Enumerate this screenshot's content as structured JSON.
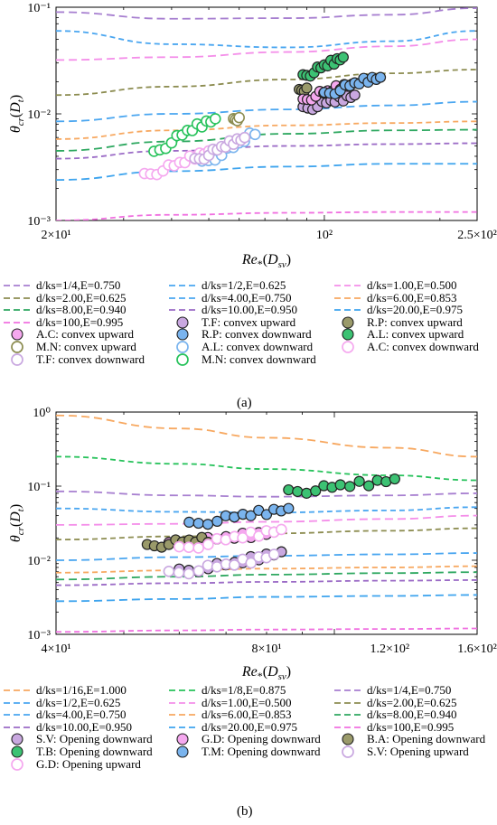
{
  "panel_a": {
    "label": "(a)",
    "y_axis_label": "θcr(Dt)",
    "x_axis_label": "Re*(Dsv)",
    "y_ticks": [
      "10⁻¹",
      "10⁻²",
      "10⁻³"
    ],
    "x_ticks": [
      "2×10¹",
      "10²",
      "2.5×10²"
    ],
    "legend_labels": {
      "c0": "d/ks=1/4,E=0.750",
      "c1": "d/ks=1/2,E=0.625",
      "c2": "d/ks=1.00,E=0.500",
      "c3": "d/ks=2.00,E=0.625",
      "c4": "d/ks=4.00,E=0.750",
      "c5": "d/ks=6.00,E=0.853",
      "c6": "d/ks=8.00,E=0.940",
      "c7": "d/ks=10.00,E=0.950",
      "c8": "d/ks=20.00,E=0.975",
      "c9": "d/ks=100,E=0.995",
      "s0": "T.F: convex upward",
      "s1": "R.P: convex upward",
      "s2": "A.C: convex upward",
      "s3": "R.P: convex downward",
      "s4": "A.L: convex upward",
      "s5": "M.N: convex upward",
      "s6": "A.L: convex downward",
      "s7": "A.C: convex downward",
      "s8": "T.F: convex downward",
      "s9": "M.N: convex downward"
    }
  },
  "panel_b": {
    "label": "(b)",
    "y_axis_label": "θcr(Dt)",
    "x_axis_label": "Re*(Dsv)",
    "y_ticks": [
      "10⁰",
      "10⁻¹",
      "10⁻²",
      "10⁻³"
    ],
    "x_ticks": [
      "4×10¹",
      "8×10¹",
      "1.2×10²",
      "1.6×10²"
    ],
    "legend_labels": {
      "c0": "d/ks=1/16,E=1.000",
      "c1": "d/ks=1/8,E=0.875",
      "c2": "d/ks=1/4,E=0.750",
      "c3": "d/ks=1/2,E=0.625",
      "c4": "d/ks=1.00,E=0.500",
      "c5": "d/ks=2.00,E=0.625",
      "c6": "d/ks=4.00,E=0.750",
      "c7": "d/ks=6.00,E=0.853",
      "c8": "d/ks=8.00,E=0.940",
      "c9": "d/ks=10.00,E=0.950",
      "c10": "d/ks=20.00,E=0.975",
      "c11": "d/ks=100,E=0.995",
      "s0": "S.V: Opening downward",
      "s1": "G.D: Opening downward",
      "s2": "B.A: Opening downward",
      "s3": "T.B: Opening downward",
      "s4": "T.M: Opening downward",
      "s5": "S.V: Opening upward",
      "s6": "G.D: Opening upward"
    }
  },
  "colors": {
    "purple": "#a77fd0",
    "olive": "#8c8c50",
    "green": "#27c25b",
    "sky": "#4aa6f0",
    "pink": "#f48ee9",
    "orange": "#f7a860",
    "violet": "#9b6bc6",
    "blue": "#3ea4ee",
    "magenta": "#f070e0",
    "greendk": "#2ea860",
    "oliveMarker": "#9a9a6a",
    "pinkMarker": "#f5a8ef",
    "blueMarker": "#7ab4ee",
    "greenMarker": "#3cc273",
    "lavender": "#c9a8e0"
  },
  "chart_data": [
    {
      "type": "scatter",
      "xlabel": "Re*(Dsv)",
      "ylabel": "θcr(Dt)",
      "xscale": "log",
      "yscale": "log",
      "xlim": [
        20,
        250
      ],
      "ylim": [
        0.001,
        0.1
      ],
      "grid": false,
      "legend_position": "below",
      "curves": [
        {
          "name": "d/ks=1/4,E=0.750",
          "color": "purple",
          "x": [
            20,
            40,
            80,
            150,
            250
          ],
          "y": [
            0.09,
            0.078,
            0.079,
            0.085,
            0.098
          ]
        },
        {
          "name": "d/ks=1/2,E=0.625",
          "color": "sky",
          "x": [
            20,
            40,
            80,
            150,
            250
          ],
          "y": [
            0.06,
            0.045,
            0.042,
            0.048,
            0.06
          ]
        },
        {
          "name": "d/ks=1.00,E=0.500",
          "color": "pink",
          "x": [
            20,
            40,
            80,
            150,
            250
          ],
          "y": [
            0.032,
            0.034,
            0.038,
            0.043,
            0.05
          ]
        },
        {
          "name": "d/ks=2.00,E=0.625",
          "color": "olive",
          "x": [
            20,
            40,
            80,
            150,
            250
          ],
          "y": [
            0.015,
            0.018,
            0.021,
            0.024,
            0.026
          ]
        },
        {
          "name": "d/ks=4.00,E=0.750",
          "color": "sky",
          "x": [
            20,
            40,
            80,
            150,
            250
          ],
          "y": [
            0.0085,
            0.01,
            0.011,
            0.012,
            0.013
          ]
        },
        {
          "name": "d/ks=6.00,E=0.853",
          "color": "orange",
          "x": [
            20,
            40,
            80,
            150,
            250
          ],
          "y": [
            0.0058,
            0.007,
            0.0078,
            0.0082,
            0.0085
          ]
        },
        {
          "name": "d/ks=8.00,E=0.940",
          "color": "greendk",
          "x": [
            20,
            40,
            80,
            150,
            250
          ],
          "y": [
            0.0045,
            0.0055,
            0.0065,
            0.007,
            0.0071
          ]
        },
        {
          "name": "d/ks=10.00,E=0.950",
          "color": "violet",
          "x": [
            20,
            40,
            80,
            150,
            250
          ],
          "y": [
            0.0038,
            0.0045,
            0.005,
            0.0052,
            0.0053
          ]
        },
        {
          "name": "d/ks=20.00,E=0.975",
          "color": "blue",
          "x": [
            20,
            40,
            80,
            150,
            250
          ],
          "y": [
            0.0024,
            0.0029,
            0.0032,
            0.0034,
            0.0034
          ]
        },
        {
          "name": "d/ks=100,E=0.995",
          "color": "magenta",
          "x": [
            20,
            40,
            80,
            150,
            250
          ],
          "y": [
            0.001,
            0.00113,
            0.00118,
            0.0012,
            0.0012
          ]
        }
      ],
      "series": [
        {
          "name": "T.F: convex upward",
          "marker": "filled",
          "color": "lavender",
          "x": [
            88,
            96,
            104,
            112,
            120
          ],
          "y": [
            0.011,
            0.012,
            0.013,
            0.014,
            0.015
          ]
        },
        {
          "name": "R.P: convex upward",
          "marker": "filled",
          "color": "oliveMarker",
          "x": [
            86,
            90
          ],
          "y": [
            0.016,
            0.018
          ]
        },
        {
          "name": "A.C: convex upward",
          "marker": "filled",
          "color": "pinkMarker",
          "x": [
            88,
            95,
            102,
            110,
            118
          ],
          "y": [
            0.013,
            0.015,
            0.016,
            0.018,
            0.019
          ]
        },
        {
          "name": "A.L: convex upward",
          "marker": "filled",
          "color": "blueMarker",
          "x": [
            100,
            110,
            120,
            130,
            140
          ],
          "y": [
            0.015,
            0.017,
            0.019,
            0.021,
            0.022
          ]
        },
        {
          "name": "M.N: convex upward",
          "marker": "filled",
          "color": "greenMarker",
          "x": [
            88,
            94,
            100,
            106,
            112
          ],
          "y": [
            0.022,
            0.025,
            0.028,
            0.031,
            0.034
          ]
        },
        {
          "name": "R.P: convex downward",
          "marker": "open",
          "color": "olive",
          "x": [
            58,
            60
          ],
          "y": [
            0.0085,
            0.0095
          ]
        },
        {
          "name": "A.L: convex downward",
          "marker": "open",
          "color": "blueMarker",
          "x": [
            48,
            54,
            60,
            66
          ],
          "y": [
            0.0034,
            0.0042,
            0.0052,
            0.0068
          ]
        },
        {
          "name": "A.C: convex downward",
          "marker": "open",
          "color": "pinkMarker",
          "x": [
            34,
            38,
            42,
            46,
            50
          ],
          "y": [
            0.0026,
            0.003,
            0.0034,
            0.004,
            0.0045
          ]
        },
        {
          "name": "T.F: convex downward",
          "marker": "open",
          "color": "lavender",
          "x": [
            46,
            50,
            54,
            58,
            62
          ],
          "y": [
            0.0036,
            0.0042,
            0.0048,
            0.0055,
            0.006
          ]
        },
        {
          "name": "M.N: convex downward",
          "marker": "open",
          "color": "green",
          "x": [
            36,
            40,
            44,
            48,
            52
          ],
          "y": [
            0.0042,
            0.0055,
            0.0068,
            0.008,
            0.009
          ]
        }
      ]
    },
    {
      "type": "scatter",
      "xlabel": "Re*(Dsv)",
      "ylabel": "θcr(Dt)",
      "xscale": "log",
      "yscale": "log",
      "xlim": [
        40,
        160
      ],
      "ylim": [
        0.001,
        1
      ],
      "grid": false,
      "legend_position": "below",
      "curves": [
        {
          "name": "d/ks=1/16,E=1.000",
          "color": "orange",
          "x": [
            40,
            60,
            80,
            120,
            160
          ],
          "y": [
            0.9,
            0.6,
            0.45,
            0.33,
            0.25
          ]
        },
        {
          "name": "d/ks=1/8,E=0.875",
          "color": "green",
          "x": [
            40,
            60,
            80,
            120,
            160
          ],
          "y": [
            0.25,
            0.2,
            0.17,
            0.14,
            0.12
          ]
        },
        {
          "name": "d/ks=1/4,E=0.750",
          "color": "purple",
          "x": [
            40,
            60,
            80,
            120,
            160
          ],
          "y": [
            0.085,
            0.075,
            0.072,
            0.075,
            0.08
          ]
        },
        {
          "name": "d/ks=1/2,E=0.625",
          "color": "sky",
          "x": [
            40,
            60,
            80,
            120,
            160
          ],
          "y": [
            0.05,
            0.045,
            0.044,
            0.047,
            0.052
          ]
        },
        {
          "name": "d/ks=1.00,E=0.500",
          "color": "pink",
          "x": [
            40,
            60,
            80,
            120,
            160
          ],
          "y": [
            0.03,
            0.031,
            0.033,
            0.036,
            0.04
          ]
        },
        {
          "name": "d/ks=2.00,E=0.625",
          "color": "olive",
          "x": [
            40,
            60,
            80,
            120,
            160
          ],
          "y": [
            0.019,
            0.021,
            0.023,
            0.025,
            0.027
          ]
        },
        {
          "name": "d/ks=4.00,E=0.750",
          "color": "sky",
          "x": [
            40,
            60,
            80,
            120,
            160
          ],
          "y": [
            0.01,
            0.011,
            0.0115,
            0.012,
            0.0125
          ]
        },
        {
          "name": "d/ks=6.00,E=0.853",
          "color": "orange",
          "x": [
            40,
            60,
            80,
            120,
            160
          ],
          "y": [
            0.0068,
            0.0073,
            0.0077,
            0.008,
            0.0083
          ]
        },
        {
          "name": "d/ks=8.00,E=0.940",
          "color": "greendk",
          "x": [
            40,
            60,
            80,
            120,
            160
          ],
          "y": [
            0.0055,
            0.006,
            0.0064,
            0.0067,
            0.0069
          ]
        },
        {
          "name": "d/ks=10.00,E=0.950",
          "color": "violet",
          "x": [
            40,
            60,
            80,
            120,
            160
          ],
          "y": [
            0.0046,
            0.0049,
            0.0051,
            0.0053,
            0.0054
          ]
        },
        {
          "name": "d/ks=20.00,E=0.975",
          "color": "blue",
          "x": [
            40,
            60,
            80,
            120,
            160
          ],
          "y": [
            0.0028,
            0.003,
            0.0032,
            0.0033,
            0.0034
          ]
        },
        {
          "name": "d/ks=100,E=0.995",
          "color": "magenta",
          "x": [
            40,
            60,
            80,
            120,
            160
          ],
          "y": [
            0.00108,
            0.00113,
            0.00116,
            0.00118,
            0.0012
          ]
        }
      ],
      "series": [
        {
          "name": "S.V: Opening downward",
          "marker": "filled",
          "color": "lavender",
          "x": [
            60,
            66,
            72,
            78,
            84
          ],
          "y": [
            0.007,
            0.008,
            0.009,
            0.011,
            0.013
          ]
        },
        {
          "name": "G.D: Opening downward",
          "marker": "filled",
          "color": "pinkMarker",
          "x": [
            58,
            64,
            70,
            76,
            82
          ],
          "y": [
            0.016,
            0.018,
            0.02,
            0.022,
            0.024
          ]
        },
        {
          "name": "B.A: Opening downward",
          "marker": "filled",
          "color": "oliveMarker",
          "x": [
            54,
            58,
            62,
            66
          ],
          "y": [
            0.015,
            0.017,
            0.018,
            0.019
          ]
        },
        {
          "name": "T.B: Opening downward",
          "marker": "filled",
          "color": "greenMarker",
          "x": [
            86,
            94,
            102,
            112,
            122
          ],
          "y": [
            0.082,
            0.09,
            0.1,
            0.11,
            0.125
          ]
        },
        {
          "name": "T.M: Opening downward",
          "marker": "filled",
          "color": "blueMarker",
          "x": [
            62,
            68,
            74,
            80,
            86
          ],
          "y": [
            0.03,
            0.035,
            0.04,
            0.045,
            0.05
          ]
        },
        {
          "name": "S.V: Opening upward",
          "marker": "open",
          "color": "lavender",
          "x": [
            58,
            64,
            70,
            76,
            82
          ],
          "y": [
            0.0065,
            0.0075,
            0.0085,
            0.01,
            0.012
          ]
        },
        {
          "name": "G.D: Opening upward",
          "marker": "open",
          "color": "pinkMarker",
          "x": [
            60,
            66,
            72,
            78,
            84
          ],
          "y": [
            0.014,
            0.017,
            0.02,
            0.023,
            0.026
          ]
        }
      ]
    }
  ]
}
